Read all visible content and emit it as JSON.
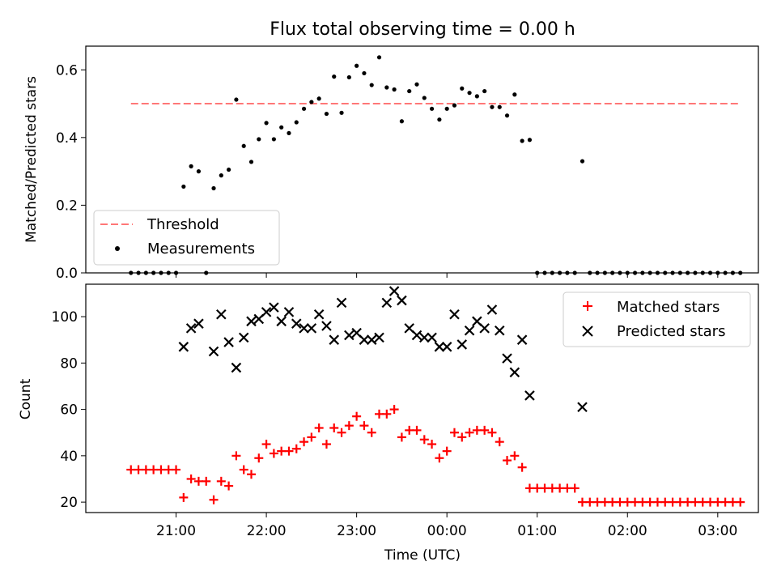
{
  "chart_data": [
    {
      "type": "scatter",
      "title": "Flux total observing time = 0.00 h",
      "xlabel": "",
      "ylabel": "Matched/Predicted stars",
      "ylim": [
        0,
        0.67
      ],
      "yticks": [
        "0.0",
        "0.2",
        "0.4",
        "0.6"
      ],
      "yticks_values": [
        0.0,
        0.2,
        0.4,
        0.6
      ],
      "xlim_hours": [
        20.0,
        27.45
      ],
      "grid": false,
      "legend": {
        "placement": "lower-left",
        "entries": [
          "Threshold",
          "Measurements"
        ]
      },
      "series": [
        {
          "name": "Threshold",
          "kind": "dashed-line",
          "color": "#ff7777",
          "x_start": "20:30",
          "x_end": "03:15",
          "value": 0.5
        },
        {
          "name": "Measurements",
          "kind": "points",
          "color": "#000000",
          "points": [
            [
              "20:30",
              0
            ],
            [
              "20:35",
              0
            ],
            [
              "20:40",
              0
            ],
            [
              "20:45",
              0
            ],
            [
              "20:50",
              0
            ],
            [
              "20:55",
              0
            ],
            [
              "21:00",
              0
            ],
            [
              "21:05",
              0.255
            ],
            [
              "21:10",
              0.315
            ],
            [
              "21:15",
              0.3
            ],
            [
              "21:20",
              0
            ],
            [
              "21:25",
              0.25
            ],
            [
              "21:30",
              0.288
            ],
            [
              "21:35",
              0.305
            ],
            [
              "21:40",
              0.512
            ],
            [
              "21:45",
              0.375
            ],
            [
              "21:50",
              0.328
            ],
            [
              "21:55",
              0.395
            ],
            [
              "22:00",
              0.443
            ],
            [
              "22:05",
              0.395
            ],
            [
              "22:10",
              0.43
            ],
            [
              "22:15",
              0.413
            ],
            [
              "22:20",
              0.445
            ],
            [
              "22:25",
              0.485
            ],
            [
              "22:30",
              0.505
            ],
            [
              "22:35",
              0.515
            ],
            [
              "22:40",
              0.47
            ],
            [
              "22:45",
              0.58
            ],
            [
              "22:50",
              0.473
            ],
            [
              "22:55",
              0.578
            ],
            [
              "23:00",
              0.612
            ],
            [
              "23:05",
              0.59
            ],
            [
              "23:10",
              0.555
            ],
            [
              "23:15",
              0.637
            ],
            [
              "23:20",
              0.548
            ],
            [
              "23:25",
              0.542
            ],
            [
              "23:30",
              0.448
            ],
            [
              "23:35",
              0.537
            ],
            [
              "23:40",
              0.557
            ],
            [
              "23:45",
              0.517
            ],
            [
              "23:50",
              0.485
            ],
            [
              "23:55",
              0.453
            ],
            [
              "00:00",
              0.485
            ],
            [
              "00:05",
              0.495
            ],
            [
              "00:10",
              0.545
            ],
            [
              "00:15",
              0.532
            ],
            [
              "00:20",
              0.522
            ],
            [
              "00:25",
              0.537
            ],
            [
              "00:30",
              0.49
            ],
            [
              "00:35",
              0.49
            ],
            [
              "00:40",
              0.465
            ],
            [
              "00:45",
              0.527
            ],
            [
              "00:50",
              0.39
            ],
            [
              "00:55",
              0.393
            ],
            [
              "01:00",
              0
            ],
            [
              "01:05",
              0
            ],
            [
              "01:10",
              0
            ],
            [
              "01:15",
              0
            ],
            [
              "01:20",
              0
            ],
            [
              "01:25",
              0
            ],
            [
              "01:30",
              0.33
            ],
            [
              "01:35",
              0
            ],
            [
              "01:40",
              0
            ],
            [
              "01:45",
              0
            ],
            [
              "01:50",
              0
            ],
            [
              "01:55",
              0
            ],
            [
              "02:00",
              0
            ],
            [
              "02:05",
              0
            ],
            [
              "02:10",
              0
            ],
            [
              "02:15",
              0
            ],
            [
              "02:20",
              0
            ],
            [
              "02:25",
              0
            ],
            [
              "02:30",
              0
            ],
            [
              "02:35",
              0
            ],
            [
              "02:40",
              0
            ],
            [
              "02:45",
              0
            ],
            [
              "02:50",
              0
            ],
            [
              "02:55",
              0
            ],
            [
              "03:00",
              0
            ],
            [
              "03:05",
              0
            ],
            [
              "03:10",
              0
            ],
            [
              "03:15",
              0
            ]
          ]
        }
      ]
    },
    {
      "type": "scatter",
      "title": "",
      "xlabel": "Time (UTC)",
      "ylabel": "Count",
      "ylim": [
        15.5,
        114
      ],
      "yticks": [
        "20",
        "40",
        "60",
        "80",
        "100"
      ],
      "yticks_values": [
        20,
        40,
        60,
        80,
        100
      ],
      "xticks": [
        "21:00",
        "22:00",
        "23:00",
        "00:00",
        "01:00",
        "02:00",
        "03:00"
      ],
      "xticks_hours": [
        21,
        22,
        23,
        24,
        25,
        26,
        27
      ],
      "xlim_hours": [
        20.0,
        27.45
      ],
      "grid": false,
      "legend": {
        "placement": "top-right",
        "entries": [
          "Matched stars",
          "Predicted stars"
        ]
      },
      "series": [
        {
          "name": "Matched stars",
          "kind": "plus",
          "color": "#ff0000",
          "points": [
            [
              "20:30",
              34
            ],
            [
              "20:35",
              34
            ],
            [
              "20:40",
              34
            ],
            [
              "20:45",
              34
            ],
            [
              "20:50",
              34
            ],
            [
              "20:55",
              34
            ],
            [
              "21:00",
              34
            ],
            [
              "21:05",
              22
            ],
            [
              "21:10",
              30
            ],
            [
              "21:15",
              29
            ],
            [
              "21:20",
              29
            ],
            [
              "21:25",
              21
            ],
            [
              "21:30",
              29
            ],
            [
              "21:35",
              27
            ],
            [
              "21:40",
              40
            ],
            [
              "21:45",
              34
            ],
            [
              "21:50",
              32
            ],
            [
              "21:55",
              39
            ],
            [
              "22:00",
              45
            ],
            [
              "22:05",
              41
            ],
            [
              "22:10",
              42
            ],
            [
              "22:15",
              42
            ],
            [
              "22:20",
              43
            ],
            [
              "22:25",
              46
            ],
            [
              "22:30",
              48
            ],
            [
              "22:35",
              52
            ],
            [
              "22:40",
              45
            ],
            [
              "22:45",
              52
            ],
            [
              "22:50",
              50
            ],
            [
              "22:55",
              53
            ],
            [
              "23:00",
              57
            ],
            [
              "23:05",
              53
            ],
            [
              "23:10",
              50
            ],
            [
              "23:15",
              58
            ],
            [
              "23:20",
              58
            ],
            [
              "23:25",
              60
            ],
            [
              "23:30",
              48
            ],
            [
              "23:35",
              51
            ],
            [
              "23:40",
              51
            ],
            [
              "23:45",
              47
            ],
            [
              "23:50",
              45
            ],
            [
              "23:55",
              39
            ],
            [
              "00:00",
              42
            ],
            [
              "00:05",
              50
            ],
            [
              "00:10",
              48
            ],
            [
              "00:15",
              50
            ],
            [
              "00:20",
              51
            ],
            [
              "00:25",
              51
            ],
            [
              "00:30",
              50
            ],
            [
              "00:35",
              46
            ],
            [
              "00:40",
              38
            ],
            [
              "00:45",
              40
            ],
            [
              "00:50",
              35
            ],
            [
              "00:55",
              26
            ],
            [
              "01:00",
              26
            ],
            [
              "01:05",
              26
            ],
            [
              "01:10",
              26
            ],
            [
              "01:15",
              26
            ],
            [
              "01:20",
              26
            ],
            [
              "01:25",
              26
            ],
            [
              "01:30",
              20
            ],
            [
              "01:35",
              20
            ],
            [
              "01:40",
              20
            ],
            [
              "01:45",
              20
            ],
            [
              "01:50",
              20
            ],
            [
              "01:55",
              20
            ],
            [
              "02:00",
              20
            ],
            [
              "02:05",
              20
            ],
            [
              "02:10",
              20
            ],
            [
              "02:15",
              20
            ],
            [
              "02:20",
              20
            ],
            [
              "02:25",
              20
            ],
            [
              "02:30",
              20
            ],
            [
              "02:35",
              20
            ],
            [
              "02:40",
              20
            ],
            [
              "02:45",
              20
            ],
            [
              "02:50",
              20
            ],
            [
              "02:55",
              20
            ],
            [
              "03:00",
              20
            ],
            [
              "03:05",
              20
            ],
            [
              "03:10",
              20
            ],
            [
              "03:15",
              20
            ]
          ]
        },
        {
          "name": "Predicted stars",
          "kind": "x",
          "color": "#000000",
          "points": [
            [
              "21:05",
              87
            ],
            [
              "21:10",
              95
            ],
            [
              "21:15",
              97
            ],
            [
              "21:25",
              85
            ],
            [
              "21:30",
              101
            ],
            [
              "21:35",
              89
            ],
            [
              "21:40",
              78
            ],
            [
              "21:45",
              91
            ],
            [
              "21:50",
              98
            ],
            [
              "21:55",
              99
            ],
            [
              "22:00",
              102
            ],
            [
              "22:05",
              104
            ],
            [
              "22:10",
              98
            ],
            [
              "22:15",
              102
            ],
            [
              "22:20",
              97
            ],
            [
              "22:25",
              95
            ],
            [
              "22:30",
              95
            ],
            [
              "22:35",
              101
            ],
            [
              "22:40",
              96
            ],
            [
              "22:45",
              90
            ],
            [
              "22:50",
              106
            ],
            [
              "22:55",
              92
            ],
            [
              "23:00",
              93
            ],
            [
              "23:05",
              90
            ],
            [
              "23:10",
              90
            ],
            [
              "23:15",
              91
            ],
            [
              "23:20",
              106
            ],
            [
              "23:25",
              111
            ],
            [
              "23:30",
              107
            ],
            [
              "23:35",
              95
            ],
            [
              "23:40",
              92
            ],
            [
              "23:45",
              91
            ],
            [
              "23:50",
              91
            ],
            [
              "23:55",
              87
            ],
            [
              "00:00",
              87
            ],
            [
              "00:05",
              101
            ],
            [
              "00:10",
              88
            ],
            [
              "00:15",
              94
            ],
            [
              "00:20",
              98
            ],
            [
              "00:25",
              95
            ],
            [
              "00:30",
              103
            ],
            [
              "00:35",
              94
            ],
            [
              "00:40",
              82
            ],
            [
              "00:45",
              76
            ],
            [
              "00:50",
              90
            ],
            [
              "00:55",
              66
            ],
            [
              "01:30",
              61
            ]
          ]
        }
      ]
    }
  ]
}
